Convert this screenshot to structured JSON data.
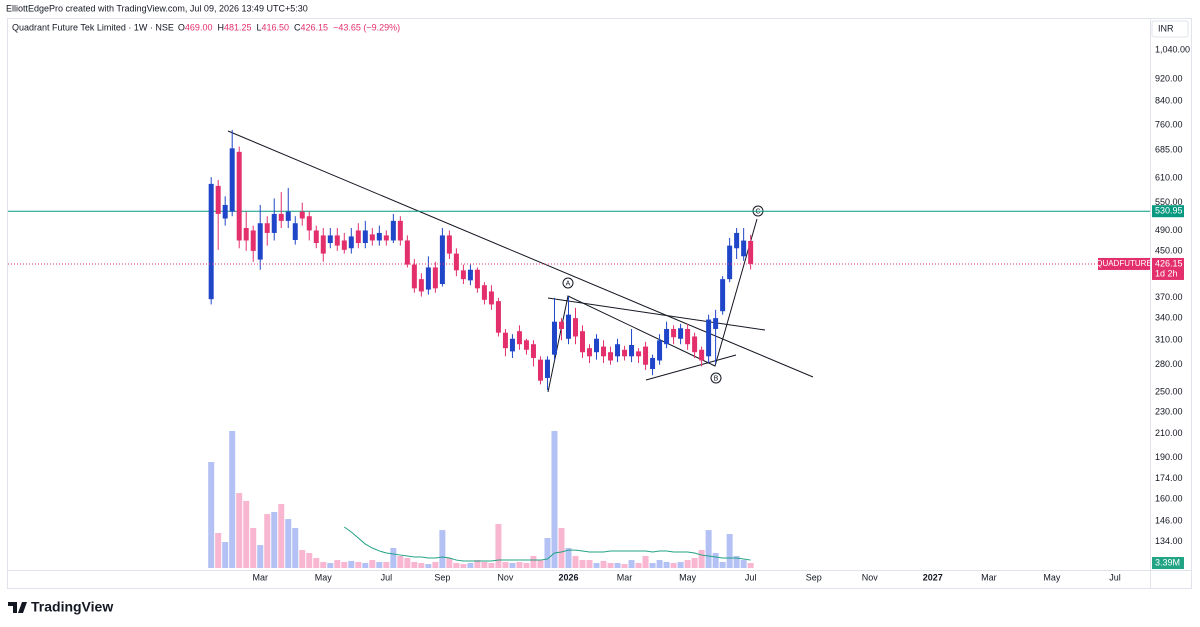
{
  "chart_data": {
    "type": "candlestick",
    "credit": "ElliottEdgePro created with TradingView.com, Jul 09, 2026 13:49 UTC+5:30",
    "title": "Quadrant Future Tek Limited · 1W · NSE",
    "header": [
      {
        "key": "O",
        "text": "469.00"
      },
      {
        "key": "H",
        "text": "481.25"
      },
      {
        "key": "L",
        "text": "416.50"
      },
      {
        "key": "C",
        "text": "426.15"
      },
      {
        "key": "",
        "text": "−43.65 (−9.29%)"
      }
    ],
    "currency": "INR",
    "symbol": "QUADFUTURE",
    "countdown": "1d 2h",
    "brand": "TradingView",
    "ylog": true,
    "grid": false,
    "ylim": [
      120,
      1188
    ],
    "yticks": [
      {
        "value": 1040,
        "label": "1,040.00"
      },
      {
        "value": 920,
        "label": "920.00"
      },
      {
        "value": 840,
        "label": "840.00"
      },
      {
        "value": 760,
        "label": "760.00"
      },
      {
        "value": 685,
        "label": "685.00"
      },
      {
        "value": 610,
        "label": "610.00"
      },
      {
        "value": 550,
        "label": "550.00"
      },
      {
        "value": 490,
        "label": "490.00"
      },
      {
        "value": 450,
        "label": "450.00"
      },
      {
        "value": 370,
        "label": "370.00"
      },
      {
        "value": 340,
        "label": "340.00"
      },
      {
        "value": 310,
        "label": "310.00"
      },
      {
        "value": 280,
        "label": "280.00"
      },
      {
        "value": 250,
        "label": "250.00"
      },
      {
        "value": 230,
        "label": "230.00"
      },
      {
        "value": 210,
        "label": "210.00"
      },
      {
        "value": 190,
        "label": "190.00"
      },
      {
        "value": 174,
        "label": "174.00"
      },
      {
        "value": 160,
        "label": "160.00"
      },
      {
        "value": 146,
        "label": "146.00"
      },
      {
        "value": 134,
        "label": "134.00"
      }
    ],
    "xlim": [
      -29,
      134
    ],
    "xticks": [
      {
        "value": 7,
        "label": "Mar"
      },
      {
        "value": 16,
        "label": "May"
      },
      {
        "value": 25,
        "label": "Jul"
      },
      {
        "value": 33,
        "label": "Sep"
      },
      {
        "value": 42,
        "label": "Nov"
      },
      {
        "value": 51,
        "label": "2026"
      },
      {
        "value": 59,
        "label": "Mar"
      },
      {
        "value": 68,
        "label": "May"
      },
      {
        "value": 77,
        "label": "Jul"
      },
      {
        "value": 86,
        "label": "Sep"
      },
      {
        "value": 94,
        "label": "Nov"
      },
      {
        "value": 103,
        "label": "2027"
      },
      {
        "value": 111,
        "label": "Mar"
      },
      {
        "value": 120,
        "label": "May"
      },
      {
        "value": 129,
        "label": "Jul"
      }
    ],
    "up_color": "#1f45c9",
    "down_color": "#e3306c",
    "volume_up_color": "#b3c1f4",
    "volume_down_color": "#f8b6d0",
    "ma_color": "#22a384",
    "open": [
      368,
      590,
      515,
      530,
      680,
      495,
      490,
      434,
      505,
      485,
      525,
      510,
      471,
      530,
      520,
      490,
      480,
      465,
      480,
      470,
      455,
      490,
      465,
      482,
      470,
      480,
      470,
      510,
      470,
      425,
      400,
      383,
      420,
      392,
      480,
      445,
      415,
      398,
      416,
      390,
      380,
      365,
      320,
      296,
      322,
      310,
      305,
      286,
      265,
      292,
      335,
      312,
      340,
      322,
      300,
      295,
      302,
      295,
      290,
      298,
      290,
      296,
      302,
      275,
      285,
      305,
      325,
      312,
      325,
      315,
      298,
      290,
      325,
      350,
      400,
      455,
      440,
      469
    ],
    "high": [
      612,
      605,
      565,
      745,
      695,
      530,
      500,
      545,
      520,
      560,
      575,
      585,
      520,
      550,
      530,
      500,
      495,
      495,
      495,
      485,
      495,
      505,
      510,
      495,
      500,
      490,
      525,
      520,
      480,
      435,
      410,
      440,
      430,
      495,
      490,
      455,
      425,
      425,
      420,
      395,
      390,
      370,
      325,
      318,
      330,
      312,
      310,
      290,
      290,
      370,
      340,
      372,
      355,
      330,
      305,
      318,
      310,
      302,
      312,
      303,
      325,
      300,
      308,
      292,
      318,
      335,
      330,
      332,
      332,
      320,
      302,
      345,
      352,
      405,
      475,
      495,
      495,
      481.25
    ],
    "low": [
      360,
      452,
      500,
      520,
      455,
      450,
      430,
      416,
      460,
      470,
      495,
      495,
      462,
      500,
      470,
      455,
      430,
      455,
      450,
      445,
      445,
      455,
      455,
      460,
      460,
      460,
      465,
      460,
      420,
      378,
      372,
      375,
      378,
      388,
      435,
      405,
      392,
      390,
      378,
      360,
      352,
      315,
      290,
      288,
      298,
      292,
      278,
      258,
      252,
      285,
      310,
      305,
      305,
      288,
      282,
      286,
      282,
      280,
      283,
      285,
      283,
      282,
      274,
      268,
      280,
      300,
      305,
      305,
      298,
      288,
      278,
      282,
      281,
      345,
      395,
      435,
      432,
      416.5
    ],
    "close": [
      595,
      525,
      545,
      690,
      470,
      470,
      450,
      505,
      485,
      525,
      510,
      530,
      505,
      515,
      490,
      465,
      445,
      480,
      460,
      452,
      478,
      465,
      490,
      470,
      485,
      470,
      510,
      470,
      425,
      385,
      380,
      420,
      385,
      480,
      445,
      415,
      400,
      416,
      385,
      367,
      360,
      320,
      300,
      312,
      305,
      298,
      288,
      262,
      286,
      335,
      325,
      345,
      315,
      295,
      290,
      312,
      290,
      285,
      305,
      290,
      304,
      290,
      280,
      288,
      310,
      325,
      314,
      326,
      305,
      295,
      285,
      338,
      340,
      400,
      460,
      485,
      469.8,
      426.15
    ],
    "volume": [
      72100000,
      23800000,
      17700000,
      93200000,
      51000000,
      45600000,
      27200000,
      15600000,
      36700000,
      38100000,
      43500000,
      33300000,
      27200000,
      12200000,
      10200000,
      6800000,
      4100000,
      3400000,
      5400000,
      4100000,
      4800000,
      4100000,
      3400000,
      5400000,
      4100000,
      4100000,
      13600000,
      8200000,
      6800000,
      4100000,
      3400000,
      2700000,
      4100000,
      25800000,
      6800000,
      3400000,
      2700000,
      3400000,
      5400000,
      4100000,
      3400000,
      29900000,
      4100000,
      3400000,
      4100000,
      3400000,
      8200000,
      5400000,
      20400000,
      93200000,
      27200000,
      13600000,
      8200000,
      5400000,
      5400000,
      3400000,
      4800000,
      3400000,
      3400000,
      2700000,
      5400000,
      3400000,
      8200000,
      3400000,
      5400000,
      4100000,
      3400000,
      4100000,
      5400000,
      6800000,
      12200000,
      25800000,
      10200000,
      4100000,
      23100000,
      8200000,
      5400000,
      3390000
    ],
    "volume_label": "3.39M",
    "volume_ma": [
      null,
      null,
      null,
      null,
      null,
      null,
      null,
      null,
      null,
      null,
      null,
      null,
      null,
      null,
      null,
      null,
      null,
      null,
      null,
      27900000,
      24500000,
      20400000,
      16300000,
      13600000,
      11600000,
      10200000,
      9500000,
      8800000,
      8200000,
      7500000,
      7500000,
      6800000,
      6800000,
      7500000,
      6800000,
      5400000,
      4800000,
      4800000,
      4800000,
      4800000,
      4800000,
      5400000,
      5400000,
      5400000,
      5400000,
      5400000,
      5400000,
      5400000,
      6100000,
      10200000,
      10900000,
      12200000,
      12200000,
      11600000,
      10900000,
      10900000,
      10900000,
      11600000,
      11600000,
      11600000,
      11600000,
      11600000,
      11600000,
      10900000,
      11600000,
      11600000,
      10900000,
      10900000,
      10900000,
      10200000,
      8800000,
      8200000,
      7500000,
      6800000,
      6800000,
      6800000,
      6100000,
      5400000
    ],
    "hline": {
      "value": 530.95,
      "color": "#089981"
    },
    "annotations": [
      "A",
      "B",
      "C"
    ]
  }
}
